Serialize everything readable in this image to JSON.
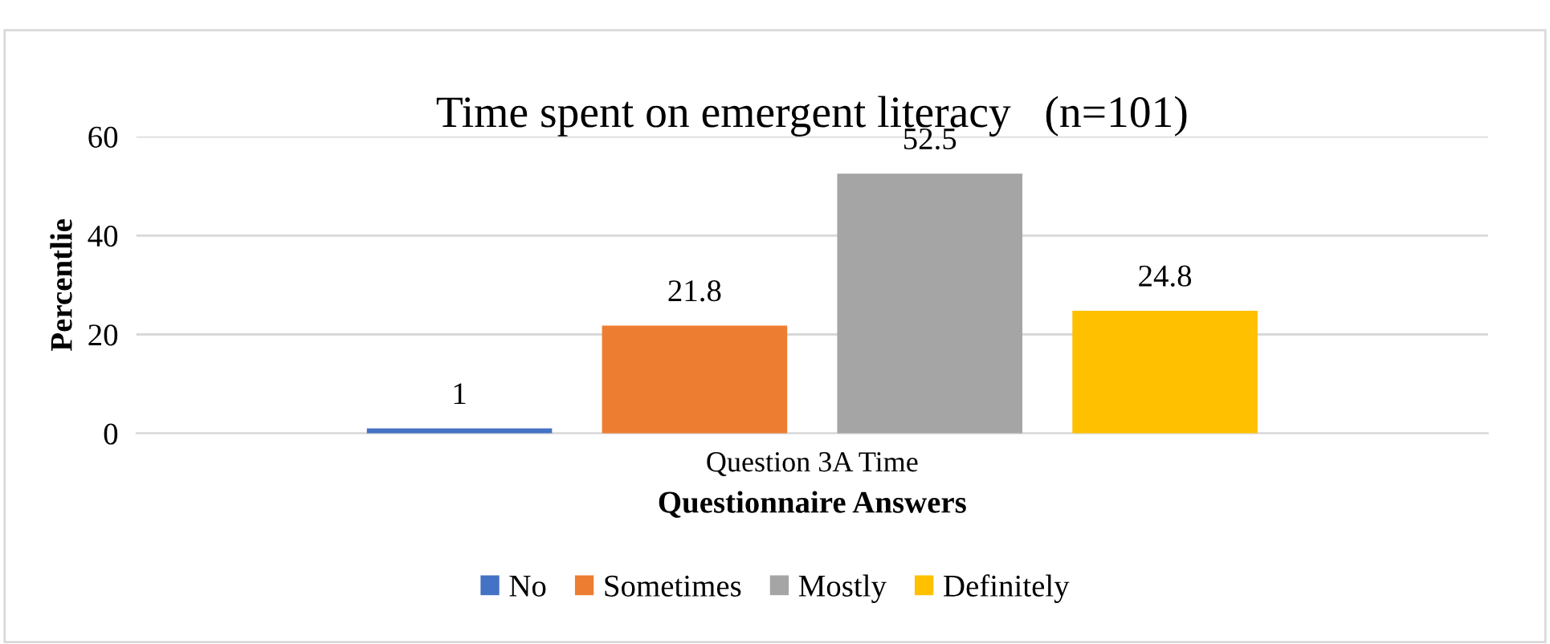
{
  "chart_data": {
    "type": "bar",
    "title": "Time spent on emergent literacy   (n=101)",
    "xlabel": "Questionnaire Answers",
    "ylabel": "Percentlie",
    "categories": [
      "Question 3A Time"
    ],
    "series": [
      {
        "name": "No",
        "color": "#4472c4",
        "values": [
          1
        ]
      },
      {
        "name": "Sometimes",
        "color": "#ed7d31",
        "values": [
          21.8
        ]
      },
      {
        "name": "Mostly",
        "color": "#a5a5a5",
        "values": [
          52.5
        ]
      },
      {
        "name": "Definitely",
        "color": "#ffc000",
        "values": [
          24.8
        ]
      }
    ],
    "ylim": [
      0,
      60
    ],
    "yticks": [
      0,
      20,
      40,
      60
    ],
    "grid": "y",
    "legend": "bottom",
    "data_labels": true
  }
}
